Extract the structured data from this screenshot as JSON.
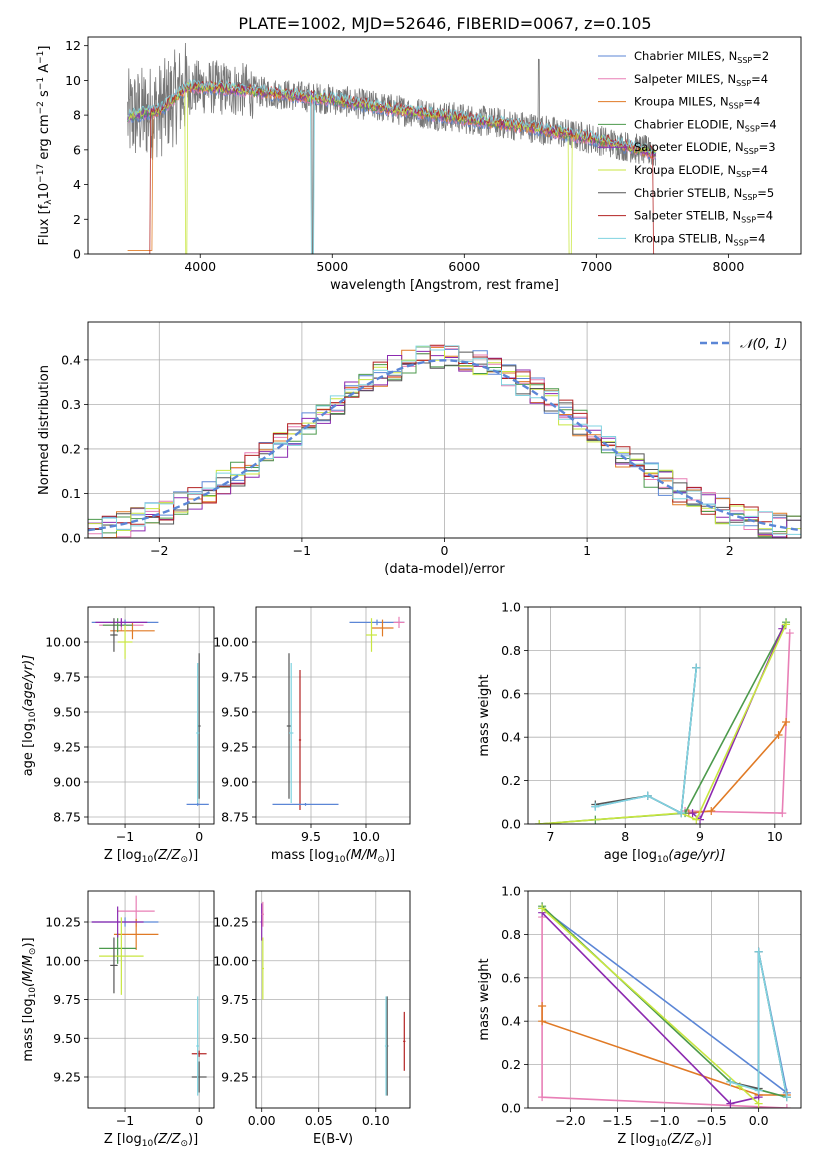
{
  "figure_title": "PLATE=1002, MJD=52646, FIBERID=0067, z=0.105",
  "series_meta": [
    {
      "name": "Chabrier MILES, N$_{SSP}$=2",
      "label_main": "Chabrier MILES, N",
      "label_sub": "SSP",
      "label_tail": "=2",
      "color": "#5b86d6"
    },
    {
      "name": "Salpeter MILES, N$_{SSP}$=4",
      "label_main": "Salpeter MILES, N",
      "label_sub": "SSP",
      "label_tail": "=4",
      "color": "#e87fb6"
    },
    {
      "name": "Kroupa MILES, N$_{SSP}$=4",
      "label_main": "Kroupa MILES, N",
      "label_sub": "SSP",
      "label_tail": "=4",
      "color": "#e07a25"
    },
    {
      "name": "Chabrier ELODIE, N$_{SSP}$=4",
      "label_main": "Chabrier ELODIE, N",
      "label_sub": "SSP",
      "label_tail": "=4",
      "color": "#4c9a4c"
    },
    {
      "name": "Salpeter ELODIE, N$_{SSP}$=3",
      "label_main": "Salpeter ELODIE, N",
      "label_sub": "SSP",
      "label_tail": "=3",
      "color": "#8c2ab0"
    },
    {
      "name": "Kroupa ELODIE, N$_{SSP}$=4",
      "label_main": "Kroupa ELODIE, N",
      "label_sub": "SSP",
      "label_tail": "=4",
      "color": "#c8e640"
    },
    {
      "name": "Chabrier STELIB, N$_{SSP}$=5",
      "label_main": "Chabrier STELIB, N",
      "label_sub": "SSP",
      "label_tail": "=5",
      "color": "#555555"
    },
    {
      "name": "Salpeter STELIB, N$_{SSP}$=4",
      "label_main": "Salpeter STELIB, N",
      "label_sub": "SSP",
      "label_tail": "=4",
      "color": "#b22222"
    },
    {
      "name": "Kroupa STELIB, N$_{SSP}$=4",
      "label_main": "Kroupa STELIB, N",
      "label_sub": "SSP",
      "label_tail": "=4",
      "color": "#7fd3e0"
    }
  ],
  "chart_data": [
    {
      "id": "spectrum",
      "type": "line",
      "xlabel": "wavelength [Angstrom, rest frame]",
      "ylabel_main": "Flux [f",
      "ylabel_sub": "λ",
      "ylabel_rest": "10",
      "ylabel_exp": "−17",
      "ylabel_units": " erg cm",
      "ylabel_exp2": "−2",
      "ylabel_units2": " s",
      "ylabel_exp3": "−1",
      "ylabel_units3": " A",
      "ylabel_exp4": "−1",
      "ylabel_close": "]",
      "xlim": [
        3150,
        8550
      ],
      "ylim": [
        0,
        12.5
      ],
      "xticks": [
        "4000",
        "5000",
        "6000",
        "7000",
        "8000"
      ],
      "xtick_values": [
        4000,
        5000,
        6000,
        7000,
        8000
      ],
      "yticks": [
        "0",
        "2",
        "4",
        "6",
        "8",
        "10",
        "12"
      ],
      "ytick_values": [
        0,
        2,
        4,
        6,
        8,
        10,
        12
      ],
      "grid": false,
      "legend_position": "upper right",
      "data_range": [
        3450,
        7450
      ],
      "model_envelope": [
        [
          3450,
          7.9
        ],
        [
          3700,
          8.3
        ],
        [
          3900,
          9.6
        ],
        [
          4100,
          9.6
        ],
        [
          4500,
          9.3
        ],
        [
          5000,
          8.9
        ],
        [
          5500,
          8.3
        ],
        [
          6000,
          7.8
        ],
        [
          6500,
          7.3
        ],
        [
          7000,
          6.6
        ],
        [
          7400,
          5.9
        ],
        [
          7450,
          5.8
        ]
      ]
    },
    {
      "id": "residuals",
      "type": "histogram",
      "xlabel": "(data-model)/error",
      "ylabel": "Normed distribution",
      "xlim": [
        -2.5,
        2.5
      ],
      "ylim": [
        0,
        0.485
      ],
      "xticks": [
        "−2",
        "−1",
        "0",
        "1",
        "2"
      ],
      "xtick_values": [
        -2,
        -1,
        0,
        1,
        2
      ],
      "yticks": [
        "0.0",
        "0.1",
        "0.2",
        "0.3",
        "0.4"
      ],
      "ytick_values": [
        0,
        0.1,
        0.2,
        0.3,
        0.4
      ],
      "grid": true,
      "legend_position": "upper right",
      "legend_entry": "𝒩(0, 1)",
      "reference_curve": "normal(0,1)",
      "reference_color": "#5b86d6",
      "bin_edges_range": [
        -2.6,
        2.6
      ],
      "bin_width": 0.1
    },
    {
      "id": "age_vs_Z",
      "type": "errorbar",
      "xlabel_main": "Z [log",
      "xlabel_sub": "10",
      "xlabel_rest": "(Z/Z",
      "xlabel_sun": "⊙",
      "xlabel_close": ")]",
      "ylabel_main": "age  [log",
      "ylabel_sub": "10",
      "ylabel_rest": "(age/yr)]",
      "xlim": [
        -1.5,
        0.2
      ],
      "ylim": [
        8.7,
        10.25
      ],
      "xticks": [
        "−1",
        "0"
      ],
      "xtick_values": [
        -1,
        0
      ],
      "yticks": [
        "8.75",
        "9.00",
        "9.25",
        "9.50",
        "9.75",
        "10.00"
      ],
      "ytick_values": [
        8.75,
        9.0,
        9.25,
        9.5,
        9.75,
        10.0
      ],
      "grid": true,
      "points": [
        {
          "s": 0,
          "x": -1.0,
          "y": 10.14,
          "xe": 0.45,
          "ye": 0.02
        },
        {
          "s": 1,
          "x": -1.05,
          "y": 10.12,
          "xe": 0.3,
          "ye": 0.04
        },
        {
          "s": 2,
          "x": -0.9,
          "y": 10.08,
          "xe": 0.3,
          "ye": 0.06
        },
        {
          "s": 3,
          "x": -1.1,
          "y": 10.12,
          "xe": 0.2,
          "ye": 0.05
        },
        {
          "s": 4,
          "x": -1.05,
          "y": 10.14,
          "xe": 0.35,
          "ye": 0.03
        },
        {
          "s": 5,
          "x": -1.0,
          "y": 10.0,
          "xe": 0.1,
          "ye": 0.12
        },
        {
          "s": 6,
          "x": -1.15,
          "y": 10.05,
          "xe": 0.05,
          "ye": 0.12
        },
        {
          "s": 6,
          "x": 0.0,
          "y": 9.4,
          "xe": 0.02,
          "ye": 0.52
        },
        {
          "s": 0,
          "x": -0.02,
          "y": 8.84,
          "xe": 0.15,
          "ye": 0.01
        },
        {
          "s": 8,
          "x": -0.02,
          "y": 9.35,
          "xe": 0.02,
          "ye": 0.5
        }
      ]
    },
    {
      "id": "age_vs_mass",
      "type": "errorbar",
      "xlabel_main": "mass [log",
      "xlabel_sub": "10",
      "xlabel_rest": "(M/M",
      "xlabel_sun": "⊙",
      "xlabel_close": ")]",
      "xlim": [
        9.0,
        10.4
      ],
      "ylim": [
        8.7,
        10.25
      ],
      "xticks": [
        "9.5",
        "10.0"
      ],
      "xtick_values": [
        9.5,
        10.0
      ],
      "yticks": [
        "8.75",
        "9.00",
        "9.25",
        "9.50",
        "9.75",
        "10.00"
      ],
      "ytick_values": [
        8.75,
        9.0,
        9.25,
        9.5,
        9.75,
        10.0
      ],
      "grid": true,
      "points": [
        {
          "s": 0,
          "x": 10.1,
          "y": 10.14,
          "xe": 0.25,
          "ye": 0.02
        },
        {
          "s": 1,
          "x": 10.3,
          "y": 10.14,
          "xe": 0.05,
          "ye": 0.04
        },
        {
          "s": 2,
          "x": 10.15,
          "y": 10.1,
          "xe": 0.1,
          "ye": 0.06
        },
        {
          "s": 5,
          "x": 10.05,
          "y": 10.05,
          "xe": 0.05,
          "ye": 0.12
        },
        {
          "s": 7,
          "x": 9.4,
          "y": 9.3,
          "xe": 0.01,
          "ye": 0.5
        },
        {
          "s": 6,
          "x": 9.3,
          "y": 9.4,
          "xe": 0.02,
          "ye": 0.52
        },
        {
          "s": 0,
          "x": 9.45,
          "y": 8.84,
          "xe": 0.3,
          "ye": 0.01
        },
        {
          "s": 8,
          "x": 9.32,
          "y": 9.35,
          "xe": 0.02,
          "ye": 0.5
        }
      ]
    },
    {
      "id": "massweight_vs_age",
      "type": "line",
      "xlabel_main": "age  [log",
      "xlabel_sub": "10",
      "xlabel_rest": "(age/yr)]",
      "ylabel": "mass weight",
      "xlim": [
        6.7,
        10.35
      ],
      "ylim": [
        0,
        1.0
      ],
      "xticks": [
        "7",
        "8",
        "9",
        "10"
      ],
      "xtick_values": [
        7,
        8,
        9,
        10
      ],
      "yticks": [
        "0.0",
        "0.2",
        "0.4",
        "0.6",
        "0.8",
        "1.0"
      ],
      "ytick_values": [
        0,
        0.2,
        0.4,
        0.6,
        0.8,
        1.0
      ],
      "grid": true,
      "series": [
        {
          "s": 0,
          "x": [
            7.6,
            8.3,
            8.75,
            8.95
          ],
          "y": [
            0.08,
            0.13,
            0.05,
            0.72
          ]
        },
        {
          "s": 1,
          "x": [
            8.8,
            10.1,
            10.2
          ],
          "y": [
            0.06,
            0.05,
            0.88
          ]
        },
        {
          "s": 2,
          "x": [
            8.85,
            9.15,
            10.05,
            10.15
          ],
          "y": [
            0.05,
            0.06,
            0.41,
            0.47
          ]
        },
        {
          "s": 3,
          "x": [
            6.85,
            7.6,
            8.8,
            10.15
          ],
          "y": [
            0.0,
            0.02,
            0.05,
            0.93
          ]
        },
        {
          "s": 4,
          "x": [
            8.9,
            9.0,
            10.1
          ],
          "y": [
            0.05,
            0.02,
            0.9
          ]
        },
        {
          "s": 5,
          "x": [
            6.85,
            8.75,
            8.95,
            10.15
          ],
          "y": [
            0.0,
            0.05,
            0.02,
            0.92
          ]
        },
        {
          "s": 6,
          "x": [
            7.6,
            8.3,
            8.75,
            8.95
          ],
          "y": [
            0.09,
            0.13,
            0.05,
            0.72
          ]
        },
        {
          "s": 8,
          "x": [
            7.6,
            8.3,
            8.75,
            8.95
          ],
          "y": [
            0.08,
            0.13,
            0.05,
            0.72
          ]
        }
      ]
    },
    {
      "id": "mass_vs_Z",
      "type": "errorbar",
      "xlabel_main": "Z [log",
      "xlabel_sub": "10",
      "xlabel_rest": "(Z/Z",
      "xlabel_sun": "⊙",
      "xlabel_close": ")]",
      "ylabel_main": "mass [log",
      "ylabel_sub": "10",
      "ylabel_rest": "(M/M",
      "ylabel_sun": "⊙",
      "ylabel_close": ")]",
      "xlim": [
        -1.5,
        0.2
      ],
      "ylim": [
        9.05,
        10.45
      ],
      "xticks": [
        "−1",
        "0"
      ],
      "xtick_values": [
        -1,
        0
      ],
      "yticks": [
        "9.25",
        "9.50",
        "9.75",
        "10.00",
        "10.25"
      ],
      "ytick_values": [
        9.25,
        9.5,
        9.75,
        10.0,
        10.25
      ],
      "grid": true,
      "points": [
        {
          "s": 0,
          "x": -1.0,
          "y": 10.25,
          "xe": 0.45,
          "ye": 0.03
        },
        {
          "s": 1,
          "x": -0.85,
          "y": 10.32,
          "xe": 0.25,
          "ye": 0.1
        },
        {
          "s": 2,
          "x": -0.85,
          "y": 10.17,
          "xe": 0.3,
          "ye": 0.1
        },
        {
          "s": 3,
          "x": -1.1,
          "y": 10.08,
          "xe": 0.25,
          "ye": 0.1
        },
        {
          "s": 4,
          "x": -1.1,
          "y": 10.25,
          "xe": 0.35,
          "ye": 0.1
        },
        {
          "s": 5,
          "x": -1.05,
          "y": 10.03,
          "xe": 0.3,
          "ye": 0.25
        },
        {
          "s": 6,
          "x": -1.15,
          "y": 9.97,
          "xe": 0.05,
          "ye": 0.18
        },
        {
          "s": 7,
          "x": 0.0,
          "y": 9.4,
          "xe": 0.1,
          "ye": 0.02
        },
        {
          "s": 6,
          "x": 0.0,
          "y": 9.25,
          "xe": 0.1,
          "ye": 0.1
        },
        {
          "s": 8,
          "x": -0.02,
          "y": 9.45,
          "xe": 0.02,
          "ye": 0.32
        }
      ]
    },
    {
      "id": "mass_vs_EBV",
      "type": "errorbar",
      "xlabel": "E(B-V)",
      "xlim": [
        -0.005,
        0.13
      ],
      "ylim": [
        9.05,
        10.45
      ],
      "xticks": [
        "0.00",
        "0.05",
        "0.10"
      ],
      "xtick_values": [
        0.0,
        0.05,
        0.1
      ],
      "yticks": [
        "9.25",
        "9.50",
        "9.75",
        "10.00",
        "10.25"
      ],
      "ytick_values": [
        9.25,
        9.5,
        9.75,
        10.0,
        10.25
      ],
      "grid": true,
      "points": [
        {
          "s": 4,
          "x": 0.0,
          "y": 10.25,
          "xe": 0.001,
          "ye": 0.12
        },
        {
          "s": 1,
          "x": 0.001,
          "y": 10.3,
          "xe": 0.001,
          "ye": 0.08
        },
        {
          "s": 5,
          "x": 0.001,
          "y": 9.95,
          "xe": 0.001,
          "ye": 0.2
        },
        {
          "s": 6,
          "x": 0.11,
          "y": 9.45,
          "xe": 0.001,
          "ye": 0.32
        },
        {
          "s": 7,
          "x": 0.125,
          "y": 9.48,
          "xe": 0.001,
          "ye": 0.19
        },
        {
          "s": 8,
          "x": 0.109,
          "y": 9.45,
          "xe": 0.001,
          "ye": 0.32
        }
      ]
    },
    {
      "id": "massweight_vs_Z",
      "type": "line",
      "xlabel_main": "Z [log",
      "xlabel_sub": "10",
      "xlabel_rest": "(Z/Z",
      "xlabel_sun": "⊙",
      "xlabel_close": ")]",
      "ylabel": "mass weight",
      "xlim": [
        -2.45,
        0.45
      ],
      "ylim": [
        0,
        1.0
      ],
      "xticks": [
        "−2.0",
        "−1.5",
        "−1.0",
        "−0.5",
        "0.0"
      ],
      "xtick_values": [
        -2.0,
        -1.5,
        -1.0,
        -0.5,
        0.0
      ],
      "yticks": [
        "0.0",
        "0.2",
        "0.4",
        "0.6",
        "0.8",
        "1.0"
      ],
      "ytick_values": [
        0,
        0.2,
        0.4,
        0.6,
        0.8,
        1.0
      ],
      "grid": true,
      "series": [
        {
          "s": 0,
          "x": [
            -2.3,
            0.3,
            0.0,
            0.0
          ],
          "y": [
            0.92,
            0.07,
            0.72,
            0.06
          ]
        },
        {
          "s": 1,
          "x": [
            -2.3,
            -2.3,
            0.3
          ],
          "y": [
            0.88,
            0.05,
            0.0
          ]
        },
        {
          "s": 2,
          "x": [
            -2.3,
            -2.3,
            0.0,
            0.3
          ],
          "y": [
            0.47,
            0.4,
            0.06,
            0.06
          ]
        },
        {
          "s": 3,
          "x": [
            -2.3,
            -0.3,
            0.3
          ],
          "y": [
            0.93,
            0.12,
            0.05
          ]
        },
        {
          "s": 4,
          "x": [
            -2.3,
            -0.3,
            0.0
          ],
          "y": [
            0.9,
            0.02,
            0.05
          ]
        },
        {
          "s": 5,
          "x": [
            -2.3,
            -0.2,
            0.0
          ],
          "y": [
            0.92,
            0.1,
            0.02
          ]
        },
        {
          "s": 6,
          "x": [
            -0.3,
            0.0,
            0.0,
            0.3
          ],
          "y": [
            0.12,
            0.09,
            0.72,
            0.05
          ]
        },
        {
          "s": 8,
          "x": [
            -0.3,
            0.0,
            0.0,
            0.3
          ],
          "y": [
            0.12,
            0.08,
            0.72,
            0.05
          ]
        }
      ]
    }
  ]
}
